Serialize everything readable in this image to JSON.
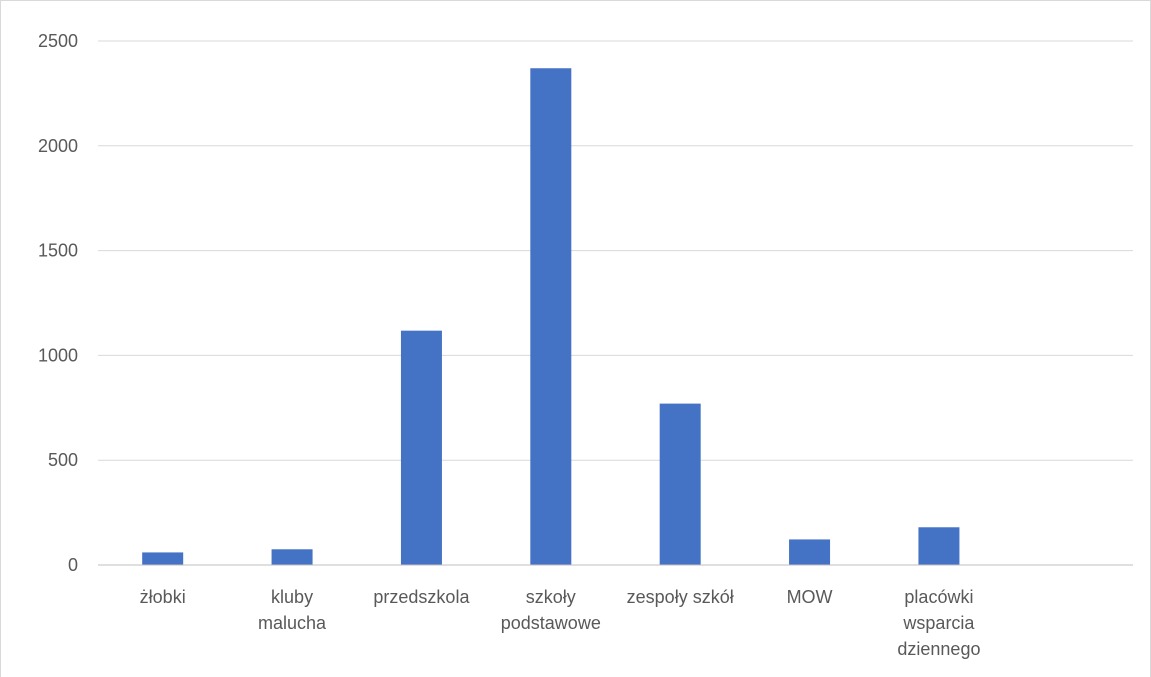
{
  "chart_data": {
    "type": "bar",
    "title": "",
    "xlabel": "",
    "ylabel": "",
    "categories": [
      [
        "żłobki"
      ],
      [
        "kluby",
        "malucha"
      ],
      [
        "przedszkola"
      ],
      [
        "szkoły",
        "podstawowe"
      ],
      [
        "zespoły szkół"
      ],
      [
        "MOW"
      ],
      [
        "placówki",
        "wsparcia",
        "dziennego"
      ],
      [
        ""
      ]
    ],
    "series": [
      {
        "values": [
          60,
          75,
          1118,
          2370,
          770,
          122,
          180,
          null
        ],
        "color": "#4472c4"
      }
    ],
    "ylim": [
      0,
      2500
    ],
    "yticks": [
      0,
      500,
      1000,
      1500,
      2000,
      2500
    ],
    "grid": true,
    "legend": "none",
    "colors": {
      "bar": "#4472c4",
      "grid": "#d9d9d9",
      "axis": "#bfbfbf",
      "label": "#595959"
    }
  }
}
